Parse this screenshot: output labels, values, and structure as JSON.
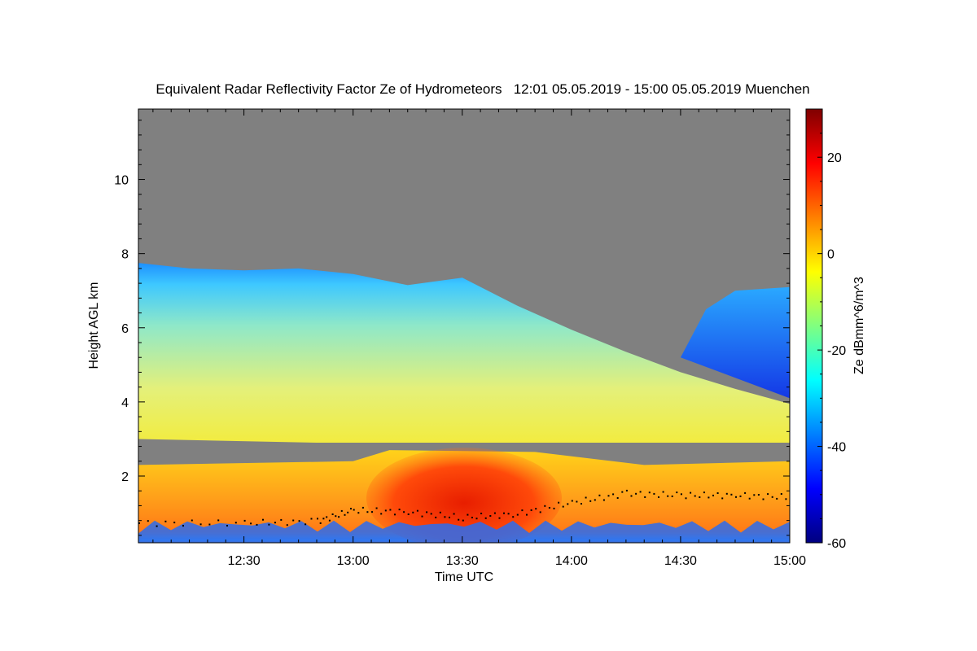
{
  "chart_data": {
    "type": "heatmap",
    "title": "Equivalent Radar Reflectivity Factor Ze of Hydrometeors   12:01 05.05.2019 - 15:00 05.05.2019 Muenchen",
    "xlabel": "Time UTC",
    "ylabel": "Height AGL km",
    "colorbar_label": "Ze dBmm^6/m^3",
    "x_range": [
      "12:01",
      "15:00"
    ],
    "x_ticks": [
      "12:30",
      "13:00",
      "13:30",
      "14:00",
      "14:30",
      "15:00"
    ],
    "ylim": [
      0.2,
      11.9
    ],
    "y_ticks": [
      2,
      4,
      6,
      8,
      10
    ],
    "color_range": [
      -60,
      30
    ],
    "colorbar_ticks": [
      20,
      0,
      -20,
      -40,
      -60
    ],
    "colormap": "jet",
    "no_signal_color": "#808080",
    "echo_top_km": [
      {
        "t": "12:01",
        "h": 7.75
      },
      {
        "t": "12:15",
        "h": 7.6
      },
      {
        "t": "12:30",
        "h": 7.55
      },
      {
        "t": "12:45",
        "h": 7.6
      },
      {
        "t": "13:00",
        "h": 7.45
      },
      {
        "t": "13:15",
        "h": 7.15
      },
      {
        "t": "13:30",
        "h": 7.35
      },
      {
        "t": "13:45",
        "h": 6.6
      },
      {
        "t": "14:00",
        "h": 5.95
      },
      {
        "t": "14:15",
        "h": 5.35
      },
      {
        "t": "14:30",
        "h": 4.8
      },
      {
        "t": "14:45",
        "h": 4.35
      },
      {
        "t": "15:00",
        "h": 3.95
      }
    ],
    "upper_region": [
      {
        "t": "14:37",
        "h": 6.5
      },
      {
        "t": "14:45",
        "h": 7.0
      },
      {
        "t": "15:00",
        "h": 7.1
      }
    ],
    "cloud_base_km": [
      {
        "t": "12:01",
        "h": 0.75
      },
      {
        "t": "12:30",
        "h": 0.75
      },
      {
        "t": "12:50",
        "h": 0.8
      },
      {
        "t": "13:00",
        "h": 1.1
      },
      {
        "t": "13:15",
        "h": 1.05
      },
      {
        "t": "13:30",
        "h": 0.9
      },
      {
        "t": "13:45",
        "h": 1.0
      },
      {
        "t": "14:00",
        "h": 1.3
      },
      {
        "t": "14:15",
        "h": 1.55
      },
      {
        "t": "14:30",
        "h": 1.5
      },
      {
        "t": "14:45",
        "h": 1.5
      },
      {
        "t": "15:00",
        "h": 1.45
      }
    ]
  }
}
